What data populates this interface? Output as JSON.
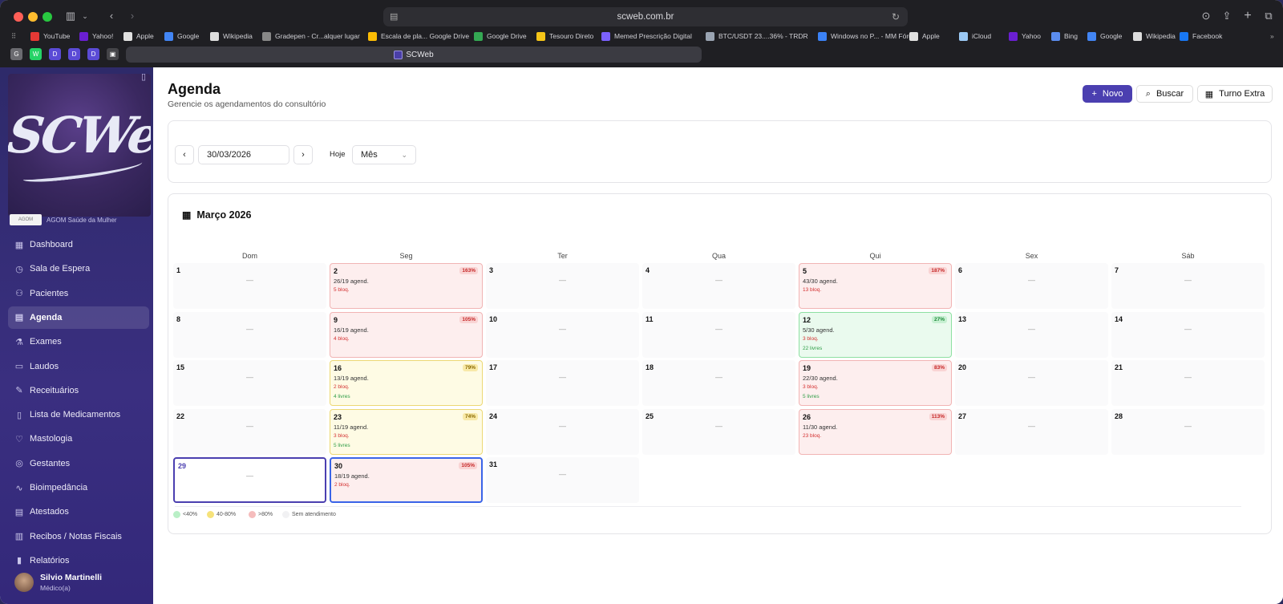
{
  "browser": {
    "url": "scweb.com.br",
    "tab_title": "SCWeb",
    "bookmarks": [
      {
        "label": "YouTube",
        "color": "#e53935"
      },
      {
        "label": "Yahoo!",
        "color": "#6a1fd1"
      },
      {
        "label": "Apple",
        "color": "#e0e0e0"
      },
      {
        "label": "Google",
        "color": "#4285f4"
      },
      {
        "label": "Wikipedia",
        "color": "#dddddd"
      },
      {
        "label": "Gradepen - Cr...alquer lugar",
        "color": "#888888"
      },
      {
        "label": "Escala de pla... Google Drive",
        "color": "#fbbc04"
      },
      {
        "label": "Google Drive",
        "color": "#34a853"
      },
      {
        "label": "Tesouro Direto",
        "color": "#f5c518"
      },
      {
        "label": "Memed Prescrição Digital",
        "color": "#7b61ff"
      },
      {
        "label": "BTC/USDT 23....36% - TRDR",
        "color": "#9aa4b2"
      },
      {
        "label": "Windows no P... - MM Fórum",
        "color": "#3b82f6"
      },
      {
        "label": "Apple",
        "color": "#e0e0e0"
      },
      {
        "label": "iCloud",
        "color": "#9bc9f5"
      },
      {
        "label": "Yahoo",
        "color": "#6a1fd1"
      },
      {
        "label": "Bing",
        "color": "#5b8def"
      },
      {
        "label": "Google",
        "color": "#4285f4"
      },
      {
        "label": "Wikipedia",
        "color": "#dddddd"
      },
      {
        "label": "Facebook",
        "color": "#1877f2"
      }
    ],
    "pinned_tabs": [
      {
        "label": "G",
        "color": "#6b6b70"
      },
      {
        "label": "W",
        "color": "#25d366"
      },
      {
        "label": "D",
        "color": "#5b4bd6"
      },
      {
        "label": "D",
        "color": "#5b4bd6"
      },
      {
        "label": "D",
        "color": "#5b4bd6"
      },
      {
        "label": "▣",
        "color": "#444448"
      }
    ]
  },
  "sidebar": {
    "logo_text": "SCWeb",
    "clinic_logo_text": "AGOM",
    "clinic_name": "AGOM Saúde da Mulher",
    "items": [
      {
        "label": "Dashboard",
        "icon": "▦",
        "active": false
      },
      {
        "label": "Sala de Espera",
        "icon": "◷",
        "active": false
      },
      {
        "label": "Pacientes",
        "icon": "⚇",
        "active": false
      },
      {
        "label": "Agenda",
        "icon": "▤",
        "active": true
      },
      {
        "label": "Exames",
        "icon": "⚗",
        "active": false
      },
      {
        "label": "Laudos",
        "icon": "▭",
        "active": false
      },
      {
        "label": "Receituários",
        "icon": "✎",
        "active": false
      },
      {
        "label": "Lista de Medicamentos",
        "icon": "▯",
        "active": false
      },
      {
        "label": "Mastologia",
        "icon": "♡",
        "active": false
      },
      {
        "label": "Gestantes",
        "icon": "◎",
        "active": false
      },
      {
        "label": "Bioimpedância",
        "icon": "∿",
        "active": false
      },
      {
        "label": "Atestados",
        "icon": "▤",
        "active": false
      },
      {
        "label": "Recibos / Notas Fiscais",
        "icon": "▥",
        "active": false
      },
      {
        "label": "Relatórios",
        "icon": "▮",
        "active": false
      }
    ],
    "user": {
      "name": "Silvio Martinelli",
      "role": "Médico(a)"
    }
  },
  "header": {
    "title": "Agenda",
    "subtitle": "Gerencie os agendamentos do consultório",
    "btn_new": "Novo",
    "btn_search": "Buscar",
    "btn_extra": "Turno Extra"
  },
  "controls": {
    "date": "30/03/2026",
    "today_label": "Hoje",
    "view": "Mês"
  },
  "calendar": {
    "title": "Março 2026",
    "weekdays": [
      "Dom",
      "Seg",
      "Ter",
      "Qua",
      "Qui",
      "Sex",
      "Sáb"
    ],
    "empty_marker": "—",
    "weeks": [
      [
        {
          "day": "1"
        },
        {
          "day": "2",
          "status": "red",
          "pct": "163%",
          "agend": "26/19 agend.",
          "bloq": "5 bloq."
        },
        {
          "day": "3"
        },
        {
          "day": "4"
        },
        {
          "day": "5",
          "status": "red",
          "pct": "187%",
          "agend": "43/30 agend.",
          "bloq": "13 bloq."
        },
        {
          "day": "6"
        },
        {
          "day": "7"
        }
      ],
      [
        {
          "day": "8"
        },
        {
          "day": "9",
          "status": "red",
          "pct": "105%",
          "agend": "16/19 agend.",
          "bloq": "4 bloq."
        },
        {
          "day": "10"
        },
        {
          "day": "11"
        },
        {
          "day": "12",
          "status": "grn",
          "pct": "27%",
          "agend": "5/30 agend.",
          "bloq": "3 bloq.",
          "livres": "22 livres"
        },
        {
          "day": "13"
        },
        {
          "day": "14"
        }
      ],
      [
        {
          "day": "15"
        },
        {
          "day": "16",
          "status": "yel",
          "pct": "79%",
          "agend": "13/19 agend.",
          "bloq": "2 bloq.",
          "livres": "4 livres"
        },
        {
          "day": "17"
        },
        {
          "day": "18"
        },
        {
          "day": "19",
          "status": "red",
          "pct": "83%",
          "agend": "22/30 agend.",
          "bloq": "3 bloq.",
          "livres": "5 livres"
        },
        {
          "day": "20"
        },
        {
          "day": "21"
        }
      ],
      [
        {
          "day": "22"
        },
        {
          "day": "23",
          "status": "yel",
          "pct": "74%",
          "agend": "11/19 agend.",
          "bloq": "3 bloq.",
          "livres": "5 livres"
        },
        {
          "day": "24"
        },
        {
          "day": "25"
        },
        {
          "day": "26",
          "status": "red",
          "pct": "113%",
          "agend": "11/30 agend.",
          "bloq": "23 bloq."
        },
        {
          "day": "27"
        },
        {
          "day": "28"
        }
      ],
      [
        {
          "day": "29",
          "today": true
        },
        {
          "day": "30",
          "status": "red",
          "pct": "105%",
          "agend": "18/19 agend.",
          "bloq": "2 bloq.",
          "selected": true
        },
        {
          "day": "31"
        }
      ]
    ],
    "legend": [
      {
        "label": "<40%",
        "color": "#b9efc6"
      },
      {
        "label": "40-80%",
        "color": "#f6e27a"
      },
      {
        "label": ">80%",
        "color": "#f5bcbc"
      },
      {
        "label": "Sem atendimento",
        "color": "#f1f1f3"
      }
    ]
  }
}
